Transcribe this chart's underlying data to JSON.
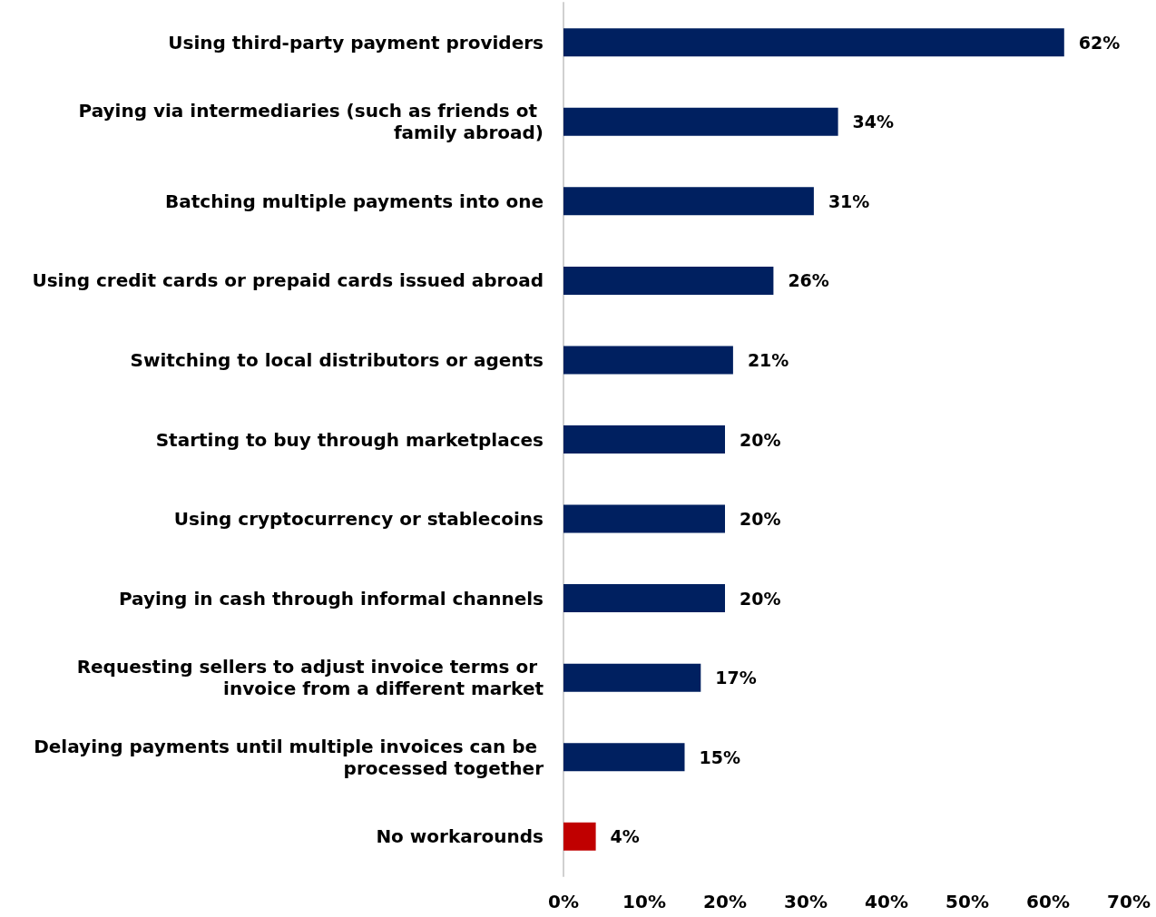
{
  "chart_data": {
    "type": "bar",
    "orientation": "horizontal",
    "categories": [
      "Using third-party payment providers",
      "Paying via intermediaries (such as friends ot family abroad)",
      "Batching multiple payments into one",
      "Using credit cards or prepaid cards issued abroad",
      "Switching to local distributors or agents",
      "Starting to buy through marketplaces",
      "Using cryptocurrency or stablecoins",
      "Paying in cash through informal channels",
      "Requesting sellers to adjust invoice terms or invoice from a different market",
      "Delaying payments until multiple invoices can be processed together",
      "No workarounds"
    ],
    "values": [
      62,
      34,
      31,
      26,
      21,
      20,
      20,
      20,
      17,
      15,
      4
    ],
    "colors": [
      "#002060",
      "#002060",
      "#002060",
      "#002060",
      "#002060",
      "#002060",
      "#002060",
      "#002060",
      "#002060",
      "#002060",
      "#c00000"
    ],
    "value_labels": [
      "62%",
      "34%",
      "31%",
      "26%",
      "21%",
      "20%",
      "20%",
      "20%",
      "17%",
      "15%",
      "4%"
    ],
    "xlim": [
      0,
      70
    ],
    "xticks": [
      {
        "value": 0,
        "label": "0%"
      },
      {
        "value": 10,
        "label": "10%"
      },
      {
        "value": 20,
        "label": "20%"
      },
      {
        "value": 30,
        "label": "30%"
      },
      {
        "value": 40,
        "label": "40%"
      },
      {
        "value": 50,
        "label": "50%"
      },
      {
        "value": 60,
        "label": "60%"
      },
      {
        "value": 70,
        "label": "70%"
      }
    ],
    "grid": false
  }
}
